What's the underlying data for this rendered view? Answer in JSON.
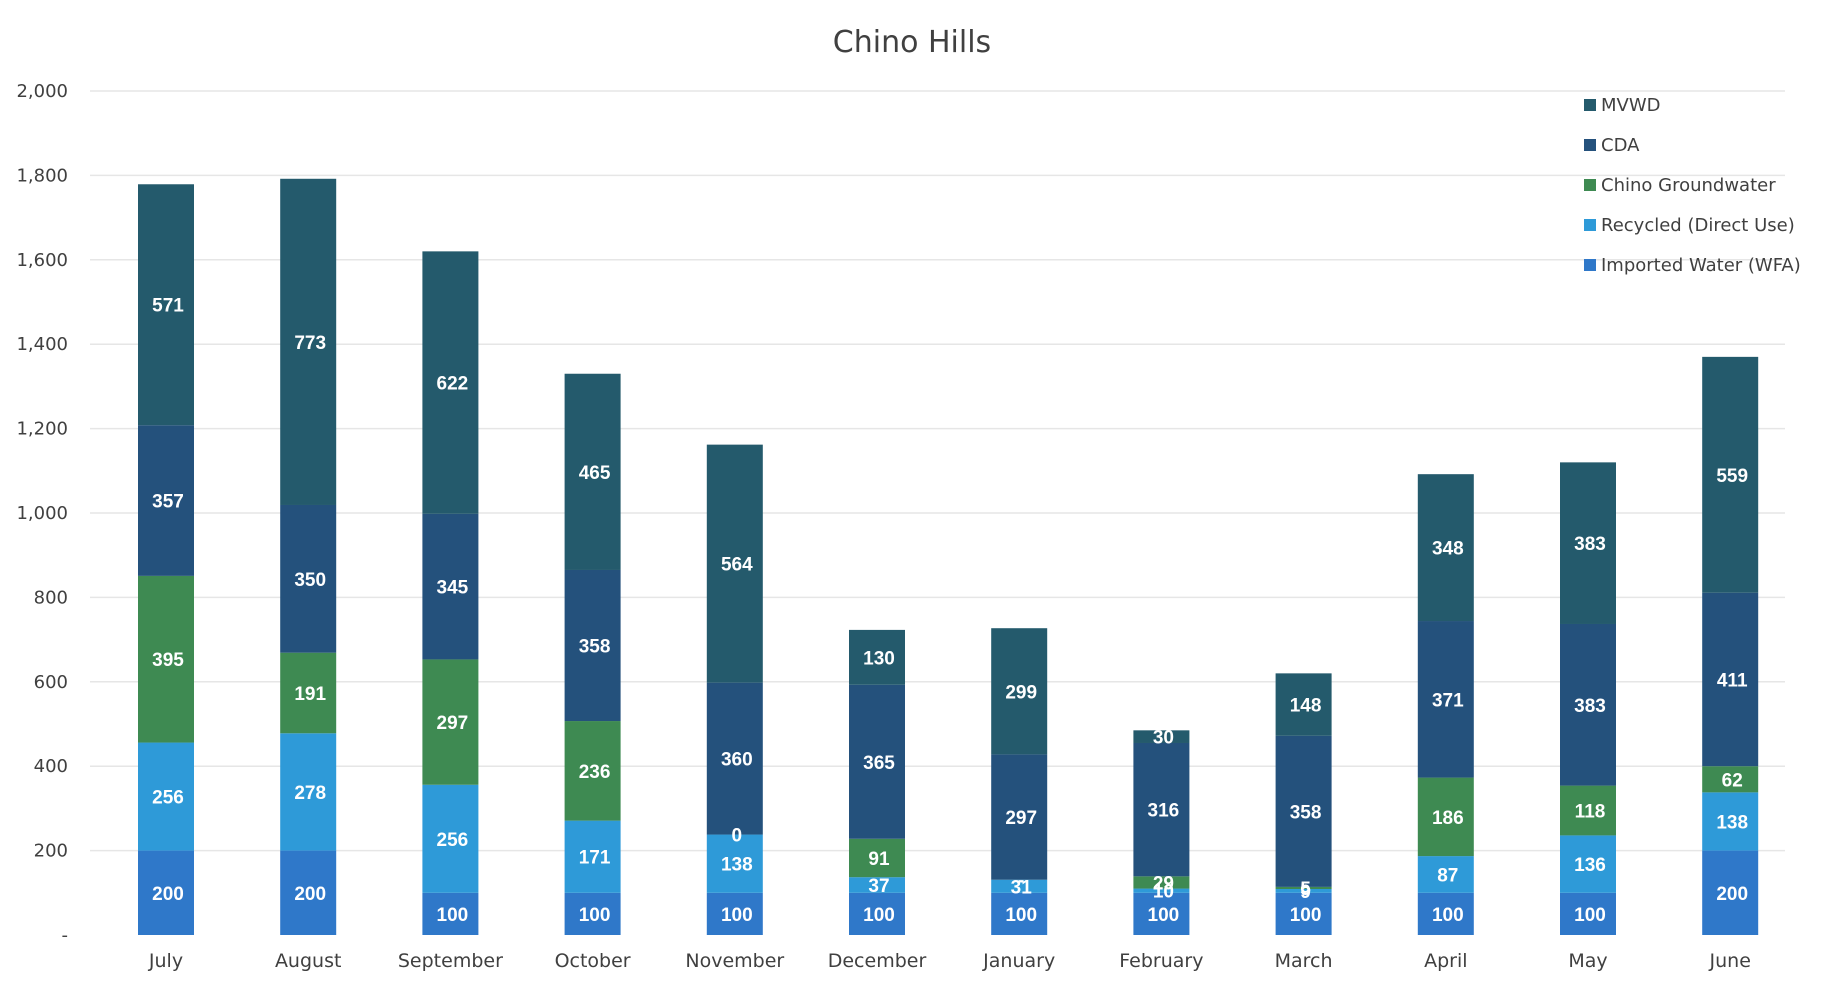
{
  "chart_data": {
    "type": "bar",
    "stacked": true,
    "title": "Chino Hills",
    "xlabel": "",
    "ylabel": "",
    "ylim": [
      0,
      2000
    ],
    "yticks": [
      "-",
      "200",
      "400",
      "600",
      "800",
      "1,000",
      "1,200",
      "1,400",
      "1,600",
      "1,800",
      "2,000"
    ],
    "grid": true,
    "legend_position": "top-right",
    "categories": [
      "July",
      "August",
      "September",
      "October",
      "November",
      "December",
      "January",
      "February",
      "March",
      "April",
      "May",
      "June"
    ],
    "series": [
      {
        "name": "Imported Water (WFA)",
        "color": "#2f78c9",
        "values": [
          200,
          200,
          100,
          100,
          100,
          100,
          100,
          100,
          100,
          100,
          100,
          200
        ],
        "labels": [
          "200",
          "200",
          "100",
          "100",
          "100",
          "100",
          "100",
          "100",
          "100",
          "100",
          "100",
          "200"
        ]
      },
      {
        "name": "Recycled (Direct Use)",
        "color": "#2e9ad8",
        "values": [
          256,
          278,
          256,
          171,
          138,
          37,
          31,
          10,
          9,
          87,
          136,
          138
        ],
        "labels": [
          "256",
          "278",
          "256",
          "171",
          "138",
          "37",
          "31",
          "10",
          "9",
          "87",
          "136",
          "138"
        ]
      },
      {
        "name": "Chino Groundwater",
        "color": "#3e8a52",
        "values": [
          395,
          191,
          297,
          236,
          0,
          91,
          0,
          29,
          5,
          186,
          118,
          62
        ],
        "labels": [
          "395",
          "191",
          "297",
          "236",
          "0",
          "91",
          "-",
          "29",
          "5",
          "186",
          "118",
          "62"
        ]
      },
      {
        "name": "CDA",
        "color": "#24517c",
        "values": [
          357,
          350,
          345,
          358,
          360,
          365,
          297,
          316,
          358,
          371,
          383,
          411
        ],
        "labels": [
          "357",
          "350",
          "345",
          "358",
          "360",
          "365",
          "297",
          "316",
          "358",
          "371",
          "383",
          "411"
        ]
      },
      {
        "name": "MVWD",
        "color": "#245a6c",
        "values": [
          571,
          773,
          622,
          465,
          564,
          130,
          299,
          30,
          148,
          348,
          383,
          559
        ],
        "labels": [
          "571",
          "773",
          "622",
          "465",
          "564",
          "130",
          "299",
          "30",
          "148",
          "348",
          "383",
          "559"
        ]
      }
    ],
    "legend_order": [
      "MVWD",
      "CDA",
      "Chino Groundwater",
      "Recycled (Direct Use)",
      "Imported Water (WFA)"
    ]
  }
}
